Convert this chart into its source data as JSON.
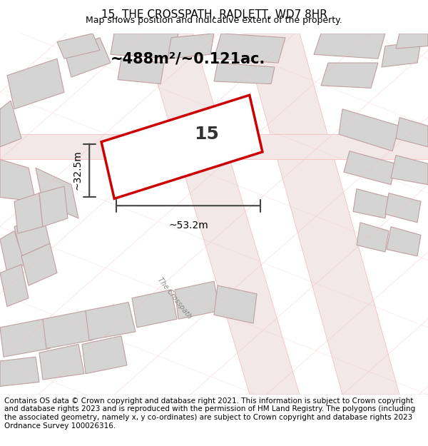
{
  "title": "15, THE CROSSPATH, RADLETT, WD7 8HR",
  "subtitle": "Map shows position and indicative extent of the property.",
  "footer": "Contains OS data © Crown copyright and database right 2021. This information is subject to Crown copyright and database rights 2023 and is reproduced with the permission of HM Land Registry. The polygons (including the associated geometry, namely x, y co-ordinates) are subject to Crown copyright and database rights 2023 Ordnance Survey 100026316.",
  "bg_color": "#f5f0f0",
  "map_bg": "#ffffff",
  "plot_color": "#cc0000",
  "plot_label": "15",
  "area_text": "~488m²/~0.121ac.",
  "dim_width": "~53.2m",
  "dim_height": "~32.5m",
  "road_label_1": "The Crosspath",
  "road_label_2": "The Crosspath",
  "footer_fontsize": 7.5,
  "title_fontsize": 11,
  "subtitle_fontsize": 9
}
